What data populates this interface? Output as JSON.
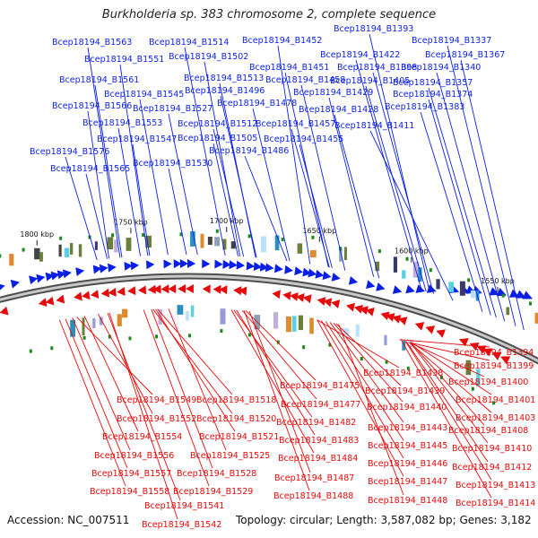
{
  "title": "Burkholderia sp. 383 chromosome 2, complete sequence",
  "footer": {
    "accession": "Accession: NC_007511",
    "topology": "Topology: circular; Length: 3,587,082 bp; Genes: 3,182"
  },
  "colors": {
    "forward": "#0a1fe6",
    "reverse": "#e60a0a",
    "backbone": "#8a8a8a",
    "tick": "#1a8a1a"
  },
  "scale_labels": [
    "1550 kbp",
    "1600 kbp",
    "1650 kbp",
    "1700 kbp",
    "1750 kbp",
    "1800 kbp"
  ],
  "labels_top": [
    "Bcep18194_B1393",
    "Bcep18194_B1337",
    "Bcep18194_B1452",
    "Bcep18194_B1563",
    "Bcep18194_B1514",
    "Bcep18194_B1367",
    "Bcep18194_B1422",
    "Bcep18194_B1551",
    "Bcep18194_B1502",
    "Bcep18194_B1451",
    "Bcep18194_B1398",
    "Bcep18194_B1340",
    "Bcep18194_B1561",
    "Bcep18194_B1513",
    "Bcep18194_B1458",
    "Bcep18194_B1405",
    "Bcep18194_B1357",
    "Bcep18194_B1545",
    "Bcep18194_B1496",
    "Bcep18194_B1429",
    "Bcep18194_B1374",
    "Bcep18194_B1566",
    "Bcep18194_B1527",
    "Bcep18194_B1478",
    "Bcep18194_B1428",
    "Bcep18194_B1383",
    "Bcep18194_B1553",
    "Bcep18194_B1512",
    "Bcep18194_B1457",
    "Bcep18194_B1411",
    "Bcep18194_B1547",
    "Bcep18194_B1505",
    "Bcep18194_B1455",
    "Bcep18194_B1576",
    "Bcep18194_B1486",
    "Bcep18194_B1530",
    "Bcep18194_B1565"
  ],
  "labels_bottom": [
    "Bcep18194_B1394",
    "Bcep18194_B1438",
    "Bcep18194_B1399",
    "Bcep18194_B1475",
    "Bcep18194_B1400",
    "Bcep18194_B1439",
    "Bcep18194_B1549",
    "Bcep18194_B1518",
    "Bcep18194_B1477",
    "Bcep18194_B1401",
    "Bcep18194_B1440",
    "Bcep18194_B1552",
    "Bcep18194_B1520",
    "Bcep18194_B1482",
    "Bcep18194_B1403",
    "Bcep18194_B1443",
    "Bcep18194_B1408",
    "Bcep18194_B1554",
    "Bcep18194_B1521",
    "Bcep18194_B1483",
    "Bcep18194_B1445",
    "Bcep18194_B1410",
    "Bcep18194_B1556",
    "Bcep18194_B1525",
    "Bcep18194_B1484",
    "Bcep18194_B1446",
    "Bcep18194_B1412",
    "Bcep18194_B1557",
    "Bcep18194_B1528",
    "Bcep18194_B1487",
    "Bcep18194_B1447",
    "Bcep18194_B1413",
    "Bcep18194_B1558",
    "Bcep18194_B1529",
    "Bcep18194_B1488",
    "Bcep18194_B1448",
    "Bcep18194_B1414",
    "Bcep18194_B1541",
    "Bcep18194_B1542"
  ]
}
